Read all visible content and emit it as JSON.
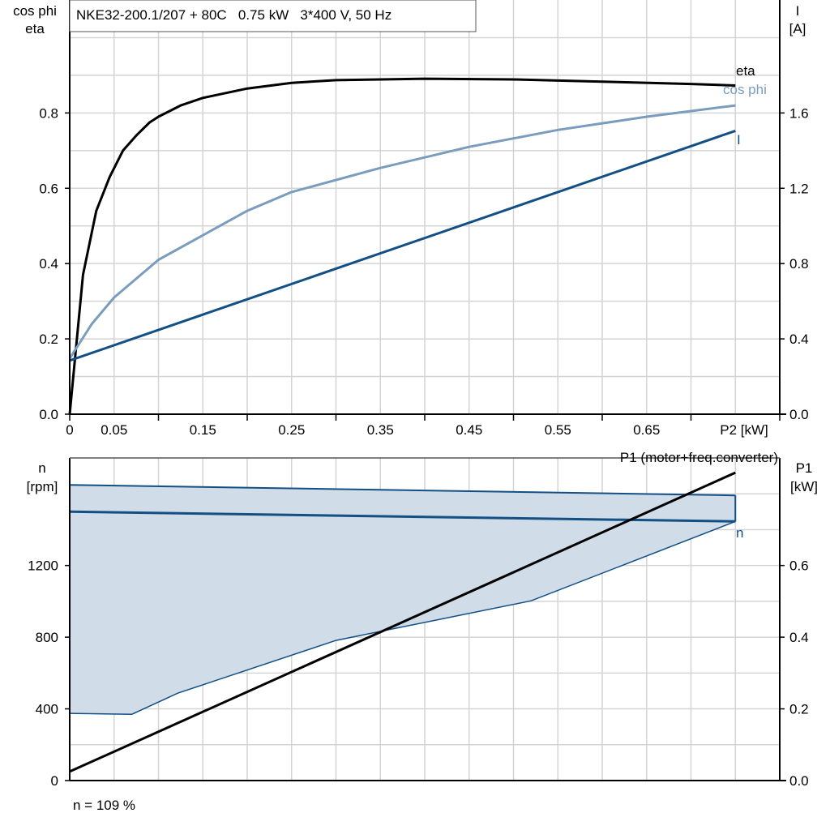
{
  "chart_data": [
    {
      "type": "line",
      "title": "NKE32-200.1/207 + 80C   0.75 kW   3*400 V, 50 Hz",
      "xlabel": "P2 [kW]",
      "ylabel_left": [
        "cos phi",
        "eta"
      ],
      "ylabel_right": [
        "I",
        "[A]"
      ],
      "xlim": [
        0,
        0.8
      ],
      "ylim_left": [
        0,
        1.1
      ],
      "ylim_right": [
        0,
        2.2
      ],
      "x_ticks": [
        "0",
        "0.05",
        "0.15",
        "0.25",
        "0.35",
        "0.45",
        "0.55",
        "0.65"
      ],
      "x_tick_values": [
        0,
        0.05,
        0.15,
        0.25,
        0.35,
        0.45,
        0.55,
        0.65
      ],
      "y_ticks_left": [
        "0.0",
        "0.2",
        "0.4",
        "0.6",
        "0.8"
      ],
      "y_ticks_right": [
        "0.0",
        "0.4",
        "0.8",
        "1.2",
        "1.6"
      ],
      "grid": true,
      "series": [
        {
          "name": "eta",
          "axis": "left",
          "color": "#000000",
          "x": [
            0,
            0.015,
            0.03,
            0.045,
            0.06,
            0.075,
            0.09,
            0.1,
            0.125,
            0.15,
            0.2,
            0.25,
            0.3,
            0.4,
            0.5,
            0.6,
            0.7,
            0.75
          ],
          "y": [
            0,
            0.37,
            0.54,
            0.63,
            0.7,
            0.74,
            0.775,
            0.79,
            0.82,
            0.84,
            0.865,
            0.88,
            0.887,
            0.891,
            0.889,
            0.883,
            0.877,
            0.873
          ]
        },
        {
          "name": "cos phi",
          "axis": "left",
          "color": "#7a9cbd",
          "x": [
            0,
            0.025,
            0.05,
            0.1,
            0.15,
            0.2,
            0.25,
            0.35,
            0.45,
            0.55,
            0.65,
            0.75
          ],
          "y": [
            0.148,
            0.24,
            0.31,
            0.41,
            0.475,
            0.54,
            0.59,
            0.654,
            0.71,
            0.755,
            0.79,
            0.82
          ]
        },
        {
          "name": "I",
          "axis": "right",
          "color": "#124f85",
          "x": [
            0,
            0.75
          ],
          "y": [
            0.285,
            1.505
          ]
        }
      ]
    },
    {
      "type": "line",
      "title": "P1 (motor+freq.converter)",
      "ylabel_left": [
        "n",
        "[rpm]"
      ],
      "ylabel_right": [
        "P1",
        "[kW]"
      ],
      "xlim": [
        0,
        0.8
      ],
      "ylim_left": [
        0,
        1800
      ],
      "ylim_right": [
        0,
        0.9
      ],
      "y_ticks_left": [
        "0",
        "400",
        "800",
        "1200"
      ],
      "y_ticks_right": [
        "0.0",
        "0.2",
        "0.4",
        "0.6"
      ],
      "grid": true,
      "footnote": "n = 109 %",
      "n_range": {
        "color": "#124f85",
        "fill": "#d0dce7",
        "max": {
          "x": [
            0,
            0.75
          ],
          "y": [
            1650,
            1591
          ]
        },
        "min": {
          "x": [
            0,
            0.07,
            0.122,
            0.3,
            0.52,
            0.75
          ],
          "y": [
            375,
            370,
            488,
            782,
            1003,
            1446
          ]
        }
      },
      "series": [
        {
          "name": "n",
          "axis": "left",
          "color": "#124f85",
          "x": [
            0,
            0.75
          ],
          "y": [
            1500,
            1446
          ]
        },
        {
          "name": "P1",
          "axis": "right",
          "color": "#000000",
          "x": [
            0,
            0.75
          ],
          "y": [
            0.025,
            0.859
          ]
        }
      ]
    }
  ]
}
